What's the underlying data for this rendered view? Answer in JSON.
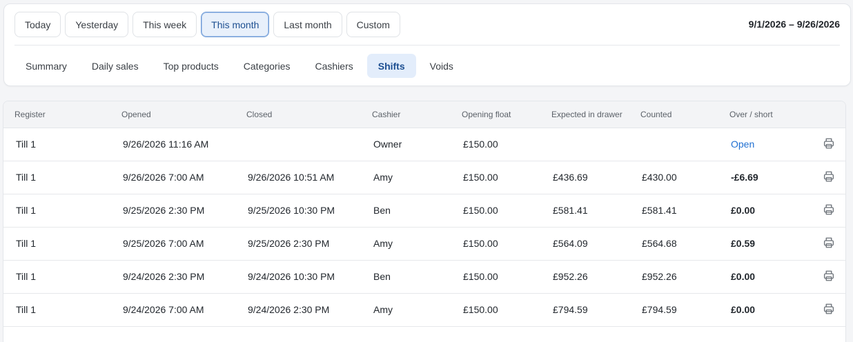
{
  "range_buttons": [
    {
      "label": "Today",
      "active": false
    },
    {
      "label": "Yesterday",
      "active": false
    },
    {
      "label": "This week",
      "active": false
    },
    {
      "label": "This month",
      "active": true
    },
    {
      "label": "Last month",
      "active": false
    },
    {
      "label": "Custom",
      "active": false
    }
  ],
  "date_range": "9/1/2026 – 9/26/2026",
  "tabs": [
    {
      "label": "Summary",
      "active": false
    },
    {
      "label": "Daily sales",
      "active": false
    },
    {
      "label": "Top products",
      "active": false
    },
    {
      "label": "Categories",
      "active": false
    },
    {
      "label": "Cashiers",
      "active": false
    },
    {
      "label": "Shifts",
      "active": true
    },
    {
      "label": "Voids",
      "active": false
    }
  ],
  "table": {
    "columns": [
      "Register",
      "Opened",
      "Closed",
      "Cashier",
      "Opening float",
      "Expected in drawer",
      "Counted",
      "Over / short"
    ],
    "rows": [
      {
        "register": "Till 1",
        "opened": "9/26/2026 11:16 AM",
        "closed": "",
        "cashier": "Owner",
        "opening_float": "£150.00",
        "expected": "",
        "counted": "",
        "over_short": "Open",
        "is_open": true,
        "print_icon": "printer-icon"
      },
      {
        "register": "Till 1",
        "opened": "9/26/2026 7:00 AM",
        "closed": "9/26/2026 10:51 AM",
        "cashier": "Amy",
        "opening_float": "£150.00",
        "expected": "£436.69",
        "counted": "£430.00",
        "over_short": "-£6.69",
        "is_open": false,
        "print_icon": "printer-icon"
      },
      {
        "register": "Till 1",
        "opened": "9/25/2026 2:30 PM",
        "closed": "9/25/2026 10:30 PM",
        "cashier": "Ben",
        "opening_float": "£150.00",
        "expected": "£581.41",
        "counted": "£581.41",
        "over_short": "£0.00",
        "is_open": false,
        "print_icon": "printer-icon"
      },
      {
        "register": "Till 1",
        "opened": "9/25/2026 7:00 AM",
        "closed": "9/25/2026 2:30 PM",
        "cashier": "Amy",
        "opening_float": "£150.00",
        "expected": "£564.09",
        "counted": "£564.68",
        "over_short": "£0.59",
        "is_open": false,
        "print_icon": "printer-icon"
      },
      {
        "register": "Till 1",
        "opened": "9/24/2026 2:30 PM",
        "closed": "9/24/2026 10:30 PM",
        "cashier": "Ben",
        "opening_float": "£150.00",
        "expected": "£952.26",
        "counted": "£952.26",
        "over_short": "£0.00",
        "is_open": false,
        "print_icon": "printer-icon"
      },
      {
        "register": "Till 1",
        "opened": "9/24/2026 7:00 AM",
        "closed": "9/24/2026 2:30 PM",
        "cashier": "Amy",
        "opening_float": "£150.00",
        "expected": "£794.59",
        "counted": "£794.59",
        "over_short": "£0.00",
        "is_open": false,
        "print_icon": "printer-icon"
      }
    ]
  },
  "colors": {
    "accent": "#1f6fd1",
    "active_bg": "#e3edfb"
  }
}
